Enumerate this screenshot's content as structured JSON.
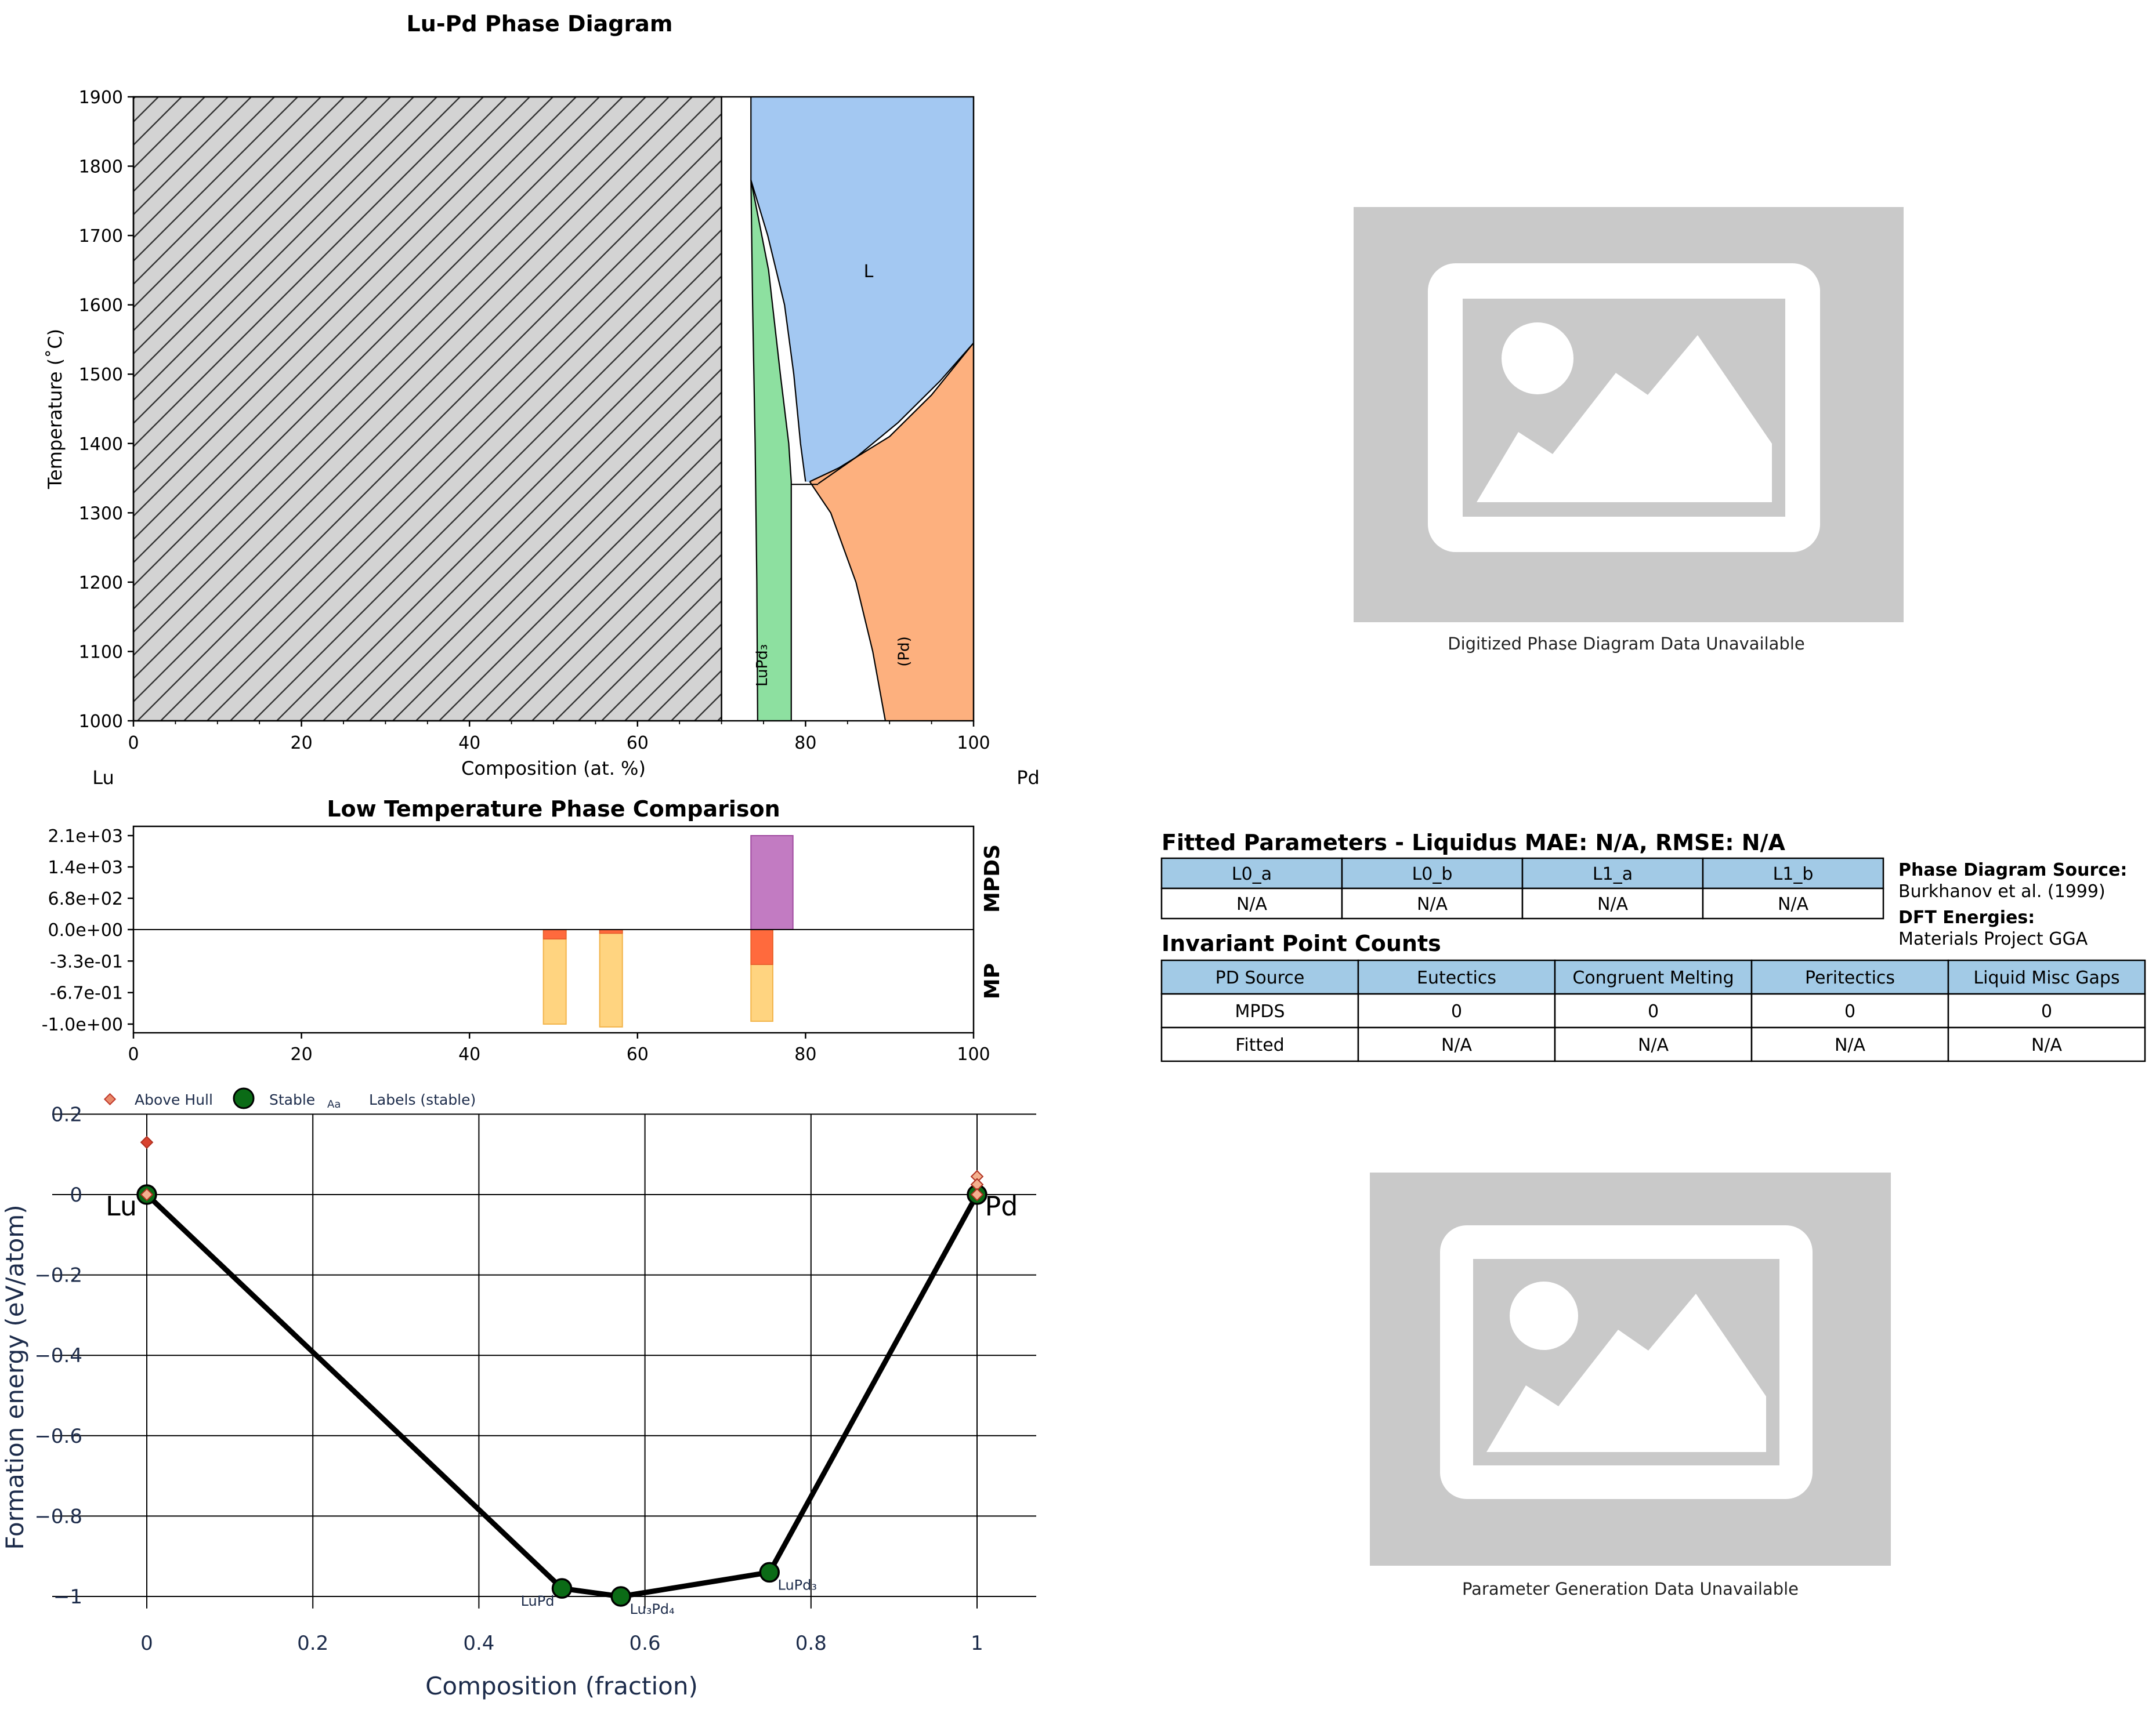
{
  "figure": {
    "phase_diagram_title": "Lu-Pd Phase Diagram",
    "comparison_title": "Low Temperature Phase Comparison",
    "left_element": "Lu",
    "right_element": "Pd",
    "colors": {
      "hatched_region": "#d3d3d3",
      "liquid": "#a3c8f2",
      "LuPd3": "#8de0a0",
      "Pd_solid": "#fdb07e",
      "mpds_bar": "#c27bc2",
      "mp_red": "#ff6a3d",
      "mp_yellow": "#ffd480",
      "hull_line": "#000000",
      "stable_marker": "#0b6b16",
      "above_hull_marker": "#e03a2a",
      "table_header": "#a2cae6"
    }
  },
  "chart_data": [
    {
      "id": "phase_diagram",
      "type": "area",
      "title": "Lu-Pd Phase Diagram",
      "xlabel": "Composition (at. %)",
      "ylabel": "Temperature (˚C)",
      "xlim": [
        0,
        100
      ],
      "ylim": [
        1000,
        1900
      ],
      "xticks": [
        "0",
        "20",
        "40",
        "60",
        "80",
        "100"
      ],
      "yticks": [
        "1000",
        "1100",
        "1200",
        "1300",
        "1400",
        "1500",
        "1600",
        "1700",
        "1800",
        "1900"
      ],
      "end_labels": [
        "Lu",
        "Pd"
      ],
      "regions": [
        {
          "name": "hatched",
          "label": "",
          "x_range": [
            0,
            70
          ],
          "t_range": [
            1000,
            1900
          ]
        },
        {
          "name": "L",
          "label": "L"
        },
        {
          "name": "LuPd3",
          "label": "LuPd₃"
        },
        {
          "name": "(Pd)",
          "label": "(Pd)"
        }
      ],
      "boundaries": {
        "liquid_left": [
          [
            73.5,
            1900
          ],
          [
            73.5,
            1780
          ]
        ],
        "LuPd3_liquidus": [
          [
            73.5,
            1780
          ],
          [
            75.5,
            1700
          ],
          [
            77.5,
            1600
          ],
          [
            78.6,
            1500
          ],
          [
            79.4,
            1400
          ],
          [
            80,
            1345
          ]
        ],
        "LuPd3_solidus_left": [
          [
            73.5,
            1780
          ],
          [
            73.7,
            1600
          ],
          [
            74,
            1400
          ],
          [
            74.2,
            1200
          ],
          [
            74.3,
            1000
          ]
        ],
        "LuPd3_solidus_right": [
          [
            73.5,
            1780
          ],
          [
            75.6,
            1650
          ],
          [
            77,
            1500
          ],
          [
            78,
            1400
          ],
          [
            78.3,
            1345
          ],
          [
            78.3,
            1000
          ]
        ],
        "eutectic_T": 1341,
        "Pd_liquidus": [
          [
            81.5,
            1342
          ],
          [
            86,
            1380
          ],
          [
            91,
            1430
          ],
          [
            96,
            1490
          ],
          [
            100,
            1545
          ]
        ],
        "Pd_solidus": [
          [
            80.5,
            1345
          ],
          [
            84,
            1365
          ],
          [
            90,
            1410
          ],
          [
            95,
            1470
          ],
          [
            100,
            1545
          ]
        ],
        "Pd_solvus": [
          [
            80.5,
            1345
          ],
          [
            83,
            1300
          ],
          [
            86,
            1200
          ],
          [
            88,
            1100
          ],
          [
            89.5,
            1000
          ]
        ]
      }
    },
    {
      "id": "phase_comparison",
      "type": "bar",
      "title": "Low Temperature Phase Comparison",
      "xlim": [
        0,
        100
      ],
      "xticks": [
        "0",
        "20",
        "40",
        "60",
        "80",
        "100"
      ],
      "yticks": [
        "2.1e+03",
        "1.4e+03",
        "6.8e+02",
        "0.0e+00",
        "-3.3e-01",
        "-6.7e-01",
        "-1.0e+00"
      ],
      "upper_label": "MPDS",
      "lower_label": "MP",
      "mpds_bars": [
        {
          "x_range": [
            73.5,
            78.5
          ],
          "value": 2050
        }
      ],
      "mp_bars": [
        {
          "x_range": [
            48.8,
            51.5
          ],
          "red_value": -0.1,
          "yellow_value": -1.0
        },
        {
          "x_range": [
            55.5,
            58.2
          ],
          "red_value": -0.04,
          "yellow_value": -1.03
        },
        {
          "x_range": [
            73.5,
            76.1
          ],
          "red_value": -0.37,
          "yellow_value": -0.97
        }
      ]
    },
    {
      "id": "convex_hull",
      "type": "scatter",
      "xlabel": "Composition (fraction)",
      "ylabel": "Formation energy (eV/atom)",
      "xlim": [
        -0.02,
        1.07
      ],
      "ylim": [
        -1.05,
        0.21
      ],
      "xticks": [
        "0",
        "0.2",
        "0.4",
        "0.6",
        "0.8",
        "1"
      ],
      "yticks": [
        "0.2",
        "0",
        "−0.2",
        "−0.4",
        "−0.6",
        "−0.8",
        "−1"
      ],
      "legend": [
        "Above Hull",
        "Stable",
        "Labels (stable)"
      ],
      "legend_glyph": "Aa",
      "legend_placement": "top",
      "stable": [
        {
          "x": 0,
          "y": 0,
          "label": "Lu"
        },
        {
          "x": 0.5,
          "y": -0.98,
          "label": "LuPd"
        },
        {
          "x": 0.571,
          "y": -1.0,
          "label": "Lu₃Pd₄"
        },
        {
          "x": 0.75,
          "y": -0.94,
          "label": "LuPd₃"
        },
        {
          "x": 1,
          "y": 0,
          "label": "Pd"
        }
      ],
      "above_hull": [
        {
          "x": 0,
          "y": 0.13
        },
        {
          "x": 0,
          "y": 0.0
        },
        {
          "x": 1,
          "y": 0.045
        },
        {
          "x": 1,
          "y": 0.025
        },
        {
          "x": 1,
          "y": 0.0
        }
      ]
    }
  ],
  "images": {
    "top_caption": "Digitized Phase Diagram Data Unavailable",
    "bottom_caption": "Parameter Generation Data Unavailable"
  },
  "fitted": {
    "title": "Fitted Parameters - Liquidus MAE: N/A, RMSE: N/A",
    "headers": [
      "L0_a",
      "L0_b",
      "L1_a",
      "L1_b"
    ],
    "values": [
      "N/A",
      "N/A",
      "N/A",
      "N/A"
    ]
  },
  "source": {
    "pd_label": "Phase Diagram Source:",
    "pd_value": "Burkhanov et al. (1999)",
    "dft_label": "DFT Energies:",
    "dft_value": "Materials Project GGA"
  },
  "invariant": {
    "title": "Invariant Point Counts",
    "headers": [
      "PD Source",
      "Eutectics",
      "Congruent Melting",
      "Peritectics",
      "Liquid Misc Gaps"
    ],
    "rows": [
      [
        "MPDS",
        "0",
        "0",
        "0",
        "0"
      ],
      [
        "Fitted",
        "N/A",
        "N/A",
        "N/A",
        "N/A"
      ]
    ]
  }
}
